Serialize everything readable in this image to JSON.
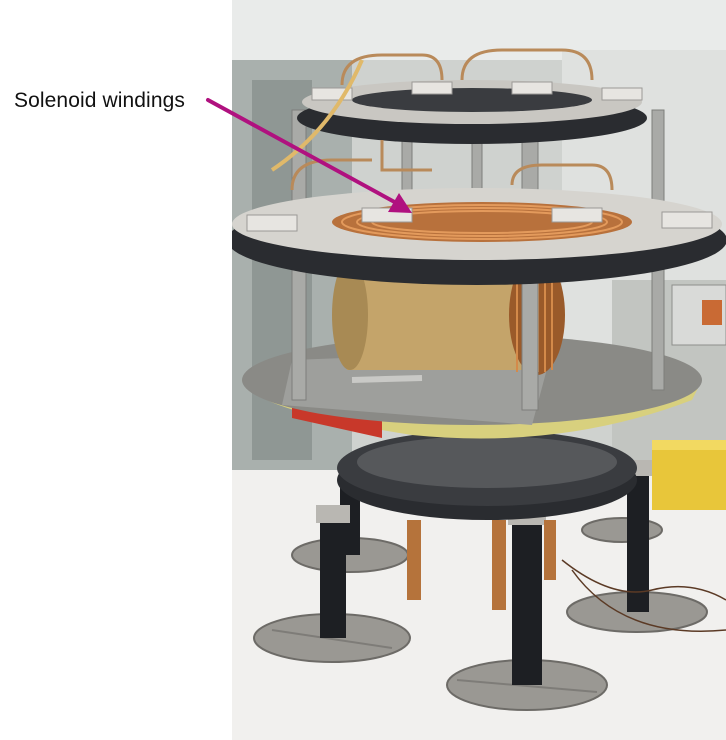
{
  "annotation": {
    "label": "Solenoid windings",
    "arrow_color": "#b0117f"
  },
  "photo": {
    "subject": "cylindrical solenoid coil apparatus on supporting pillars",
    "palette": {
      "background_wall": "#d9dcd8",
      "floor": "#f1f0ee",
      "ring_dark": "#2a2c30",
      "ring_top": "#d6d4cf",
      "copper": "#b8713c",
      "pillar": "#1d1f23",
      "base_metal": "#9a9893",
      "yellow_block": "#e8c63a",
      "red_stripe": "#c8382a"
    }
  }
}
